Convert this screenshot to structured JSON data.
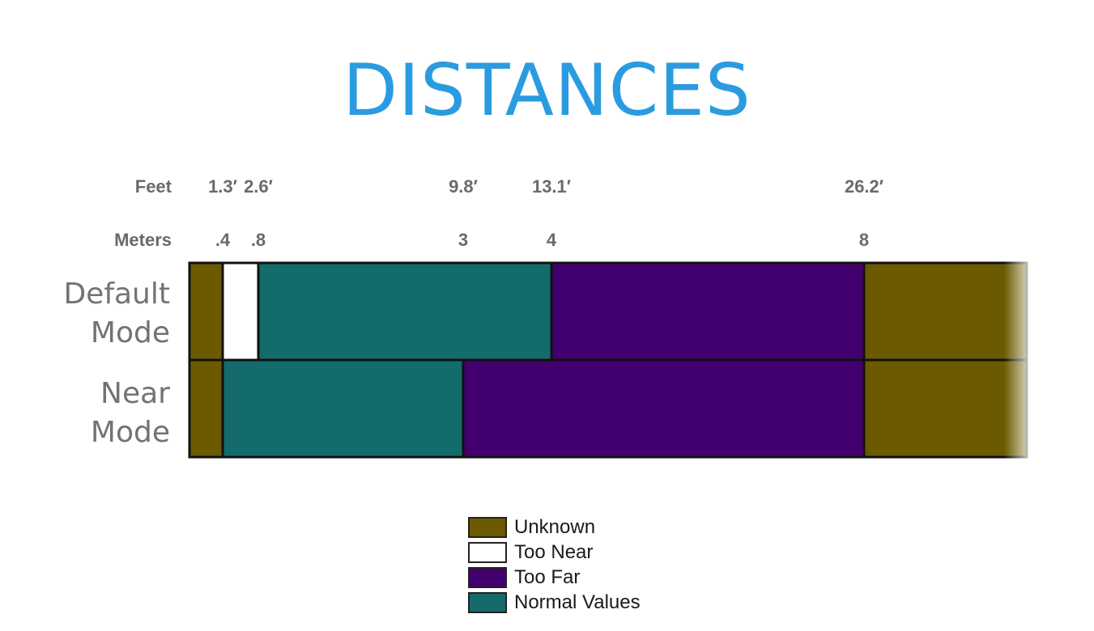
{
  "chart_data": {
    "type": "bar",
    "title": "DISTANCES",
    "axis_units": [
      "Feet",
      "Meters"
    ],
    "ticks": [
      {
        "meters": 0.4,
        "meters_label": ".4",
        "feet_label": "1.3′"
      },
      {
        "meters": 0.8,
        "meters_label": ".8",
        "feet_label": "2.6′"
      },
      {
        "meters": 3,
        "meters_label": "3",
        "feet_label": "9.8′"
      },
      {
        "meters": 4,
        "meters_label": "4",
        "feet_label": "13.1′"
      },
      {
        "meters": 8,
        "meters_label": "8",
        "feet_label": "26.2′"
      }
    ],
    "categories": [
      "Default Mode",
      "Near Mode"
    ],
    "category_lines": [
      [
        "Default",
        "Mode"
      ],
      [
        "Near",
        "Mode"
      ]
    ],
    "segments": [
      [
        {
          "range": "Unknown",
          "start": 0,
          "end": 0.4
        },
        {
          "range": "Too Near",
          "start": 0.4,
          "end": 0.8
        },
        {
          "range": "Normal Values",
          "start": 0.8,
          "end": 4
        },
        {
          "range": "Too Far",
          "start": 4,
          "end": 8
        },
        {
          "range": "Unknown",
          "start": 8,
          "end": null
        }
      ],
      [
        {
          "range": "Unknown",
          "start": 0,
          "end": 0.4
        },
        {
          "range": "Normal Values",
          "start": 0.4,
          "end": 3
        },
        {
          "range": "Too Far",
          "start": 3,
          "end": 8
        },
        {
          "range": "Unknown",
          "start": 8,
          "end": null
        }
      ]
    ],
    "legend": [
      {
        "name": "Unknown",
        "color": "#6b5a00"
      },
      {
        "name": "Too Near",
        "color": "#ffffff"
      },
      {
        "name": "Too Far",
        "color": "#42006e"
      },
      {
        "name": "Normal Values",
        "color": "#146b6b"
      }
    ],
    "colors": {
      "title": "#2b9be0",
      "border": "#111111"
    }
  }
}
